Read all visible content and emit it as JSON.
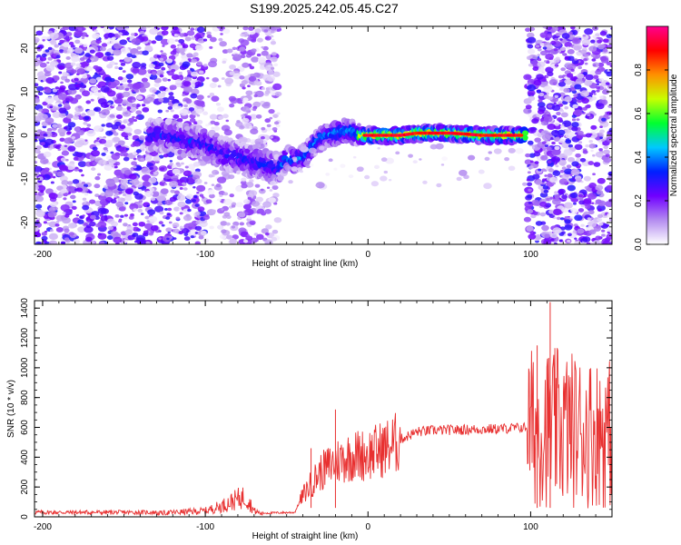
{
  "title": "S199.2025.242.05.45.C27",
  "chart_data": [
    {
      "type": "heatmap",
      "name": "spectrogram",
      "xlabel": "Height of straight line (km)",
      "ylabel": "Frequency (Hz)",
      "xlim": [
        -205,
        150
      ],
      "ylim": [
        -25,
        25
      ],
      "xticks": [
        -200,
        -100,
        0,
        100
      ],
      "yticks": [
        -20,
        -10,
        0,
        10,
        20
      ],
      "ridge": {
        "x": [
          -125,
          -115,
          -100,
          -90,
          -80,
          -70,
          -60,
          -55,
          -50,
          -45,
          -40,
          -35,
          -30,
          -25,
          -20,
          -15,
          -10,
          -5,
          0,
          10,
          20,
          30,
          40,
          50,
          60,
          70,
          80,
          90,
          95
        ],
        "y": [
          0,
          -1,
          -2,
          -4,
          -5,
          -6,
          -7,
          -8,
          -5,
          -6,
          -5,
          -3,
          -1,
          0,
          0.5,
          1,
          1,
          0,
          0,
          0,
          0,
          0.5,
          0.5,
          0.5,
          0.3,
          0,
          0,
          0,
          0
        ]
      },
      "colorbar": {
        "label": "Normalized spectral amplitude",
        "range": [
          0,
          1
        ],
        "ticks": [
          "0.0",
          "0.2",
          "0.4",
          "0.6",
          "0.8"
        ],
        "colors": [
          "#ffffff",
          "#b48cf0",
          "#7000ff",
          "#0020ff",
          "#00c8ff",
          "#00ff30",
          "#c8ff00",
          "#ff9000",
          "#ff0000",
          "#ff0090"
        ]
      }
    },
    {
      "type": "line",
      "name": "snr",
      "xlabel": "Height of straight line (km)",
      "ylabel": "SNR (10 * v/v)",
      "xlim": [
        -205,
        150
      ],
      "ylim": [
        0,
        1450
      ],
      "xticks": [
        -200,
        -100,
        0,
        100
      ],
      "yticks": [
        0,
        200,
        400,
        600,
        800,
        1000,
        1200,
        1400
      ],
      "line_color": "#e83030",
      "envelope": {
        "x": [
          -205,
          -130,
          -100,
          -90,
          -80,
          -75,
          -70,
          -65,
          -45,
          -40,
          -30,
          -20,
          -10,
          0,
          10,
          20,
          30,
          40,
          60,
          80,
          98,
          100,
          110,
          120,
          130,
          140,
          150
        ],
        "y": [
          30,
          30,
          50,
          90,
          150,
          170,
          50,
          25,
          30,
          150,
          300,
          380,
          420,
          430,
          470,
          520,
          570,
          580,
          585,
          590,
          600,
          600,
          600,
          600,
          580,
          570,
          560
        ]
      },
      "spikes": [
        {
          "x": -20,
          "y": 720
        },
        {
          "x": -35,
          "y": 460
        },
        {
          "x": 112,
          "y": 1440
        },
        {
          "x": 104,
          "y": 1150
        }
      ]
    }
  ]
}
